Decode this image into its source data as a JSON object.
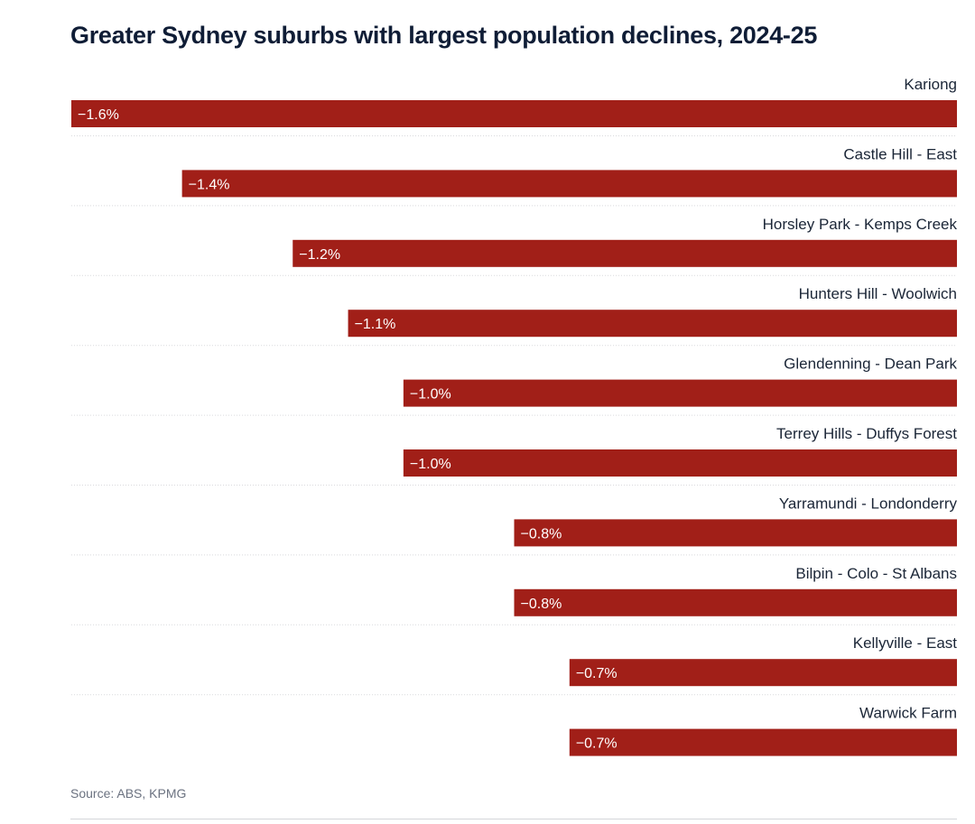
{
  "chart_data": {
    "type": "bar",
    "orientation": "horizontal",
    "title": "Greater Sydney suburbs with largest population declines, 2024-25",
    "categories": [
      "Kariong",
      "Castle Hill - East",
      "Horsley Park - Kemps Creek",
      "Hunters Hill - Woolwich",
      "Glendenning - Dean Park",
      "Terrey Hills - Duffys Forest",
      "Yarramundi - Londonderry",
      "Bilpin - Colo - St Albans",
      "Kellyville - East",
      "Warwick Farm"
    ],
    "values": [
      -1.6,
      -1.4,
      -1.2,
      -1.1,
      -1.0,
      -1.0,
      -0.8,
      -0.8,
      -0.7,
      -0.7
    ],
    "value_labels": [
      "−1.6%",
      "−1.4%",
      "−1.2%",
      "−1.1%",
      "−1.0%",
      "−1.0%",
      "−0.8%",
      "−0.8%",
      "−0.7%",
      "−0.7%"
    ],
    "xlim": [
      -1.6,
      0
    ],
    "xlabel": "",
    "ylabel": "",
    "unit": "%",
    "grid": false,
    "legend": "none",
    "bar_color": "#a11f18",
    "separator_color": "#d9dadd",
    "source": "Source: ABS, KPMG"
  }
}
